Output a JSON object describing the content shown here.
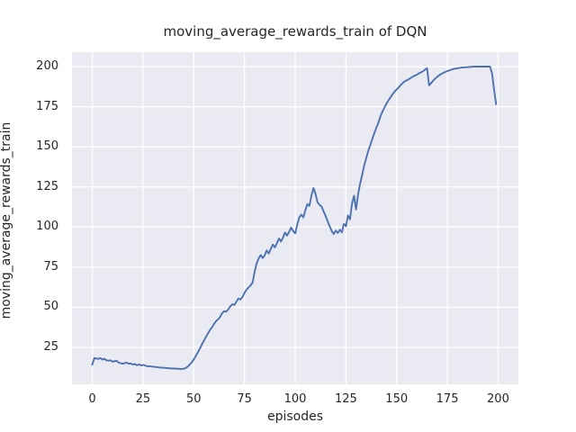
{
  "chart_data": {
    "type": "line",
    "title": "moving_average_rewards_train of DQN",
    "xlabel": "episodes",
    "ylabel": "moving_average_rewards_train",
    "grid": true,
    "legend": false,
    "xlim": [
      -10,
      210
    ],
    "ylim": [
      2,
      209
    ],
    "xticks": [
      0,
      25,
      50,
      75,
      100,
      125,
      150,
      175,
      200
    ],
    "yticks": [
      25,
      50,
      75,
      100,
      125,
      150,
      175,
      200
    ],
    "colors": {
      "line": "#4c72b0",
      "plot_background": "#eaeaf2",
      "gridline": "#ffffff",
      "figure_background": "#ffffff",
      "text": "#262626"
    },
    "series": [
      {
        "name": "moving_average_rewards_train",
        "x_start": 0,
        "x_step": 1,
        "values": [
          14.3,
          18.3,
          18.1,
          17.8,
          18.3,
          17.4,
          17.9,
          17.0,
          16.7,
          17.0,
          16.1,
          16.4,
          16.6,
          15.5,
          15.1,
          14.8,
          15.2,
          15.5,
          14.8,
          15.0,
          14.3,
          14.6,
          13.9,
          14.4,
          13.7,
          14.1,
          13.7,
          13.3,
          13.3,
          13.1,
          13.0,
          12.8,
          12.7,
          12.5,
          12.4,
          12.3,
          12.2,
          12.1,
          12.0,
          11.9,
          11.9,
          11.8,
          11.7,
          11.6,
          11.6,
          11.7,
          12.1,
          13.0,
          14.3,
          15.7,
          17.5,
          19.6,
          21.8,
          24.2,
          26.8,
          29.1,
          31.5,
          33.8,
          35.8,
          37.5,
          39.6,
          41.4,
          42.5,
          44.0,
          46.3,
          47.6,
          47.2,
          48.6,
          50.6,
          51.9,
          51.4,
          53.5,
          55.5,
          54.8,
          56.5,
          58.9,
          61.0,
          62.3,
          63.6,
          65.5,
          72.0,
          77.5,
          80.5,
          82.6,
          80.7,
          82.5,
          85.4,
          83.5,
          86.5,
          89.1,
          87.3,
          90.0,
          92.9,
          91.0,
          93.5,
          96.6,
          94.7,
          97.0,
          99.7,
          97.5,
          96.0,
          101.5,
          106.0,
          107.8,
          106.0,
          110.5,
          114.3,
          113.2,
          119.5,
          124.3,
          120.9,
          115.5,
          113.8,
          112.8,
          109.7,
          106.9,
          103.5,
          100.5,
          97.5,
          95.6,
          97.8,
          96.3,
          98.4,
          96.7,
          102.0,
          100.5,
          107.2,
          104.8,
          114.5,
          119.5,
          111.0,
          120.5,
          127.0,
          132.5,
          138.5,
          143.0,
          147.5,
          151.0,
          155.0,
          158.5,
          162.0,
          165.0,
          169.0,
          172.0,
          174.5,
          177.0,
          179.0,
          181.0,
          182.8,
          184.5,
          185.8,
          187.0,
          188.5,
          189.8,
          190.8,
          191.5,
          192.2,
          193.0,
          193.8,
          194.4,
          195.0,
          195.8,
          196.5,
          197.1,
          198.2,
          199.0,
          188.3,
          189.8,
          191.3,
          192.6,
          193.7,
          194.6,
          195.4,
          196.1,
          196.7,
          197.2,
          197.7,
          198.1,
          198.5,
          198.8,
          199.0,
          199.2,
          199.4,
          199.5,
          199.6,
          199.7,
          199.8,
          199.9,
          200.0,
          200.0,
          200.0,
          200.0,
          200.0,
          200.0,
          200.0,
          200.0,
          200.0,
          196.0,
          186.0,
          176.6
        ]
      }
    ]
  }
}
